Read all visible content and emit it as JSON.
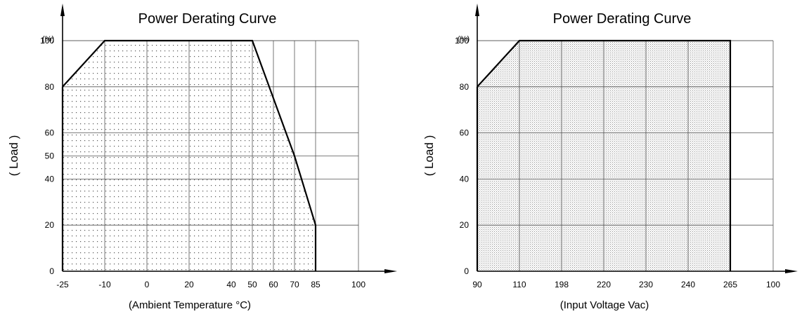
{
  "chart_data": [
    {
      "type": "area",
      "title": "Power Derating Curve",
      "xlabel": "(Ambient Temperature °C)",
      "ylabel": "( Load )",
      "y_unit": "(%)",
      "x_ticks": [
        "-25",
        "-10",
        "0",
        "20",
        "40",
        "50",
        "60",
        "70",
        "85",
        "100"
      ],
      "y_ticks": [
        "0",
        "20",
        "40",
        "50",
        "60",
        "80",
        "100"
      ],
      "ylim": [
        0,
        100
      ],
      "fill_pattern": "dotted",
      "grid": true,
      "series": [
        {
          "x": [
            "-25",
            "-10",
            "50",
            "70",
            "85",
            "85"
          ],
          "y": [
            80,
            100,
            100,
            50,
            20,
            0
          ]
        }
      ]
    },
    {
      "type": "area",
      "title": "Power Derating Curve",
      "xlabel": "(Input Voltage Vac)",
      "ylabel": "( Load )",
      "y_unit": "(%)",
      "x_ticks": [
        "90",
        "110",
        "198",
        "220",
        "230",
        "240",
        "265",
        "100"
      ],
      "y_ticks": [
        "0",
        "20",
        "40",
        "60",
        "80",
        "100"
      ],
      "ylim": [
        0,
        100
      ],
      "fill_pattern": "stippled",
      "grid": true,
      "series": [
        {
          "x": [
            "90",
            "110",
            "265",
            "265"
          ],
          "y": [
            80,
            100,
            100,
            0
          ]
        }
      ]
    }
  ]
}
